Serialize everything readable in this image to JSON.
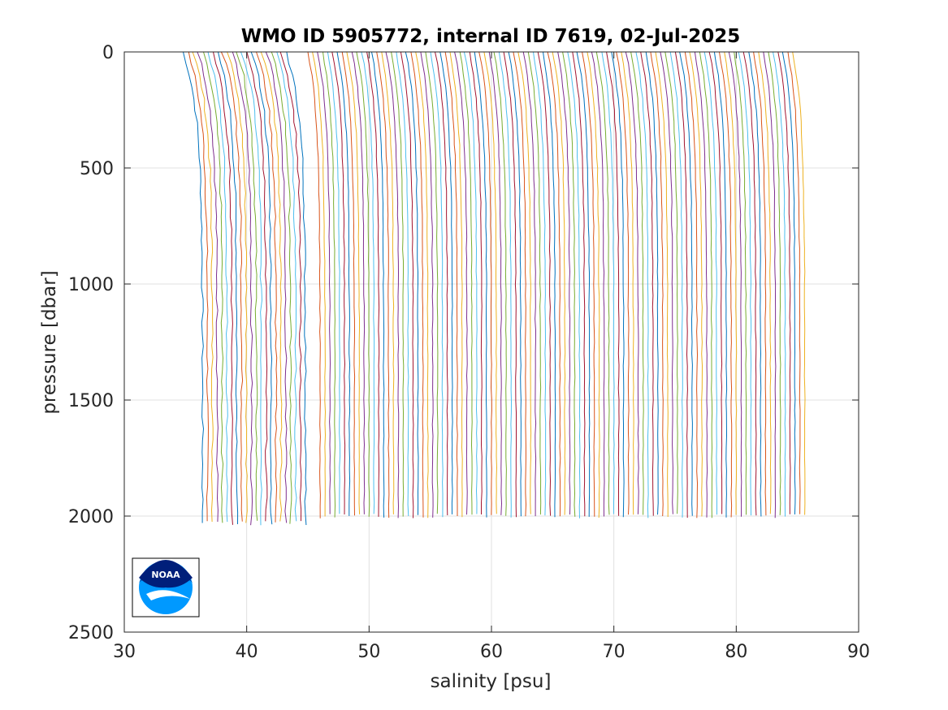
{
  "chart_data": {
    "type": "line",
    "title": "WMO ID 5905772, internal ID 7619, 02-Jul-2025",
    "xlabel": "salinity [psu]",
    "ylabel": "pressure [dbar]",
    "xlim": [
      30,
      90
    ],
    "ylim": [
      0,
      2500
    ],
    "y_reversed": true,
    "grid": true,
    "xticks": [
      30,
      40,
      50,
      60,
      70,
      80,
      90
    ],
    "yticks": [
      0,
      500,
      1000,
      1500,
      2000,
      2500
    ],
    "series_colors": [
      "#0072BD",
      "#D95319",
      "#EDB120",
      "#7E2F8E",
      "#77AC30",
      "#4DBEEE",
      "#A2142F"
    ],
    "profiles": {
      "description_offset_psu_per_profile": 0.4,
      "groups": [
        {
          "first_surface_salinity": 35.0,
          "count": 22,
          "max_pressure": 2030
        },
        {
          "first_surface_salinity": 45.0,
          "count": 100,
          "max_pressure": 2000
        }
      ]
    }
  },
  "logo": {
    "text": "NOAA",
    "icon": "noaa-logo-icon",
    "colors": {
      "dark": "#001F7A",
      "light": "#0099FF"
    }
  }
}
